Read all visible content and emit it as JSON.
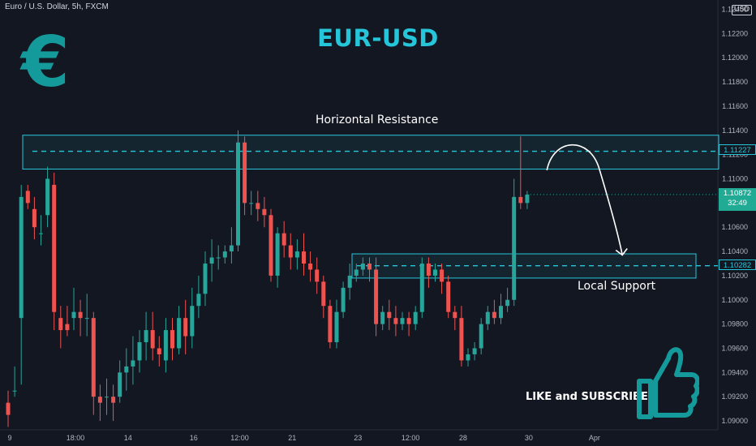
{
  "header": {
    "symbol": "Euro / U.S. Dollar, 5h, FXCM",
    "title": "EUR-USD",
    "currency_unit": "USD"
  },
  "logo": {
    "glyph": "€",
    "icon": "euro-icon"
  },
  "annotations": {
    "resistance_label": "Horizontal Resistance",
    "support_label": "Local Support",
    "cta_label": "LIKE and SUBSCRIBE",
    "cta_icon": "thumbs-up-icon"
  },
  "price_tags": {
    "resistance": "1.11227",
    "support": "1.10282",
    "current_price": "1.10872",
    "countdown": "32:49"
  },
  "colors": {
    "background": "#131722",
    "up": "#26a69a",
    "down": "#ef5350",
    "accent": "#26c6da",
    "logo": "#149a9a"
  },
  "chart_data": {
    "type": "candlestick",
    "ylim": [
      1.089,
      1.1245
    ],
    "y_ticks": [
      "1.09000",
      "1.09200",
      "1.09400",
      "1.09600",
      "1.09800",
      "1.10000",
      "1.10200",
      "1.10400",
      "1.10600",
      "1.10800",
      "1.11000",
      "1.11200",
      "1.11400",
      "1.11600",
      "1.11800",
      "1.12000",
      "1.12200",
      "1.12400"
    ],
    "x_ticks": [
      {
        "label": "9",
        "index": 0
      },
      {
        "label": "18:00",
        "index": 10
      },
      {
        "label": "14",
        "index": 18
      },
      {
        "label": "16",
        "index": 28
      },
      {
        "label": "12:00",
        "index": 35
      },
      {
        "label": "21",
        "index": 43
      },
      {
        "label": "23",
        "index": 53
      },
      {
        "label": "12:00",
        "index": 61
      },
      {
        "label": "28",
        "index": 69
      },
      {
        "label": "30",
        "index": 79
      },
      {
        "label": "Apr",
        "index": 89
      }
    ],
    "resistance_zone": [
      1.1108,
      1.1136
    ],
    "resistance_level": 1.11227,
    "support_zone": [
      1.1018,
      1.1038
    ],
    "support_level": 1.10282,
    "candles": [
      [
        1.0915,
        1.0925,
        1.0905,
        1.0895
      ],
      [
        1.0925,
        1.0945,
        1.0925,
        1.092
      ],
      [
        1.0985,
        1.1095,
        1.1085,
        1.093
      ],
      [
        1.109,
        1.1095,
        1.108,
        1.1075
      ],
      [
        1.1075,
        1.1085,
        1.106,
        1.105
      ],
      [
        1.1055,
        1.107,
        1.1055,
        1.1045
      ],
      [
        1.107,
        1.111,
        1.11,
        1.106
      ],
      [
        1.1095,
        1.1105,
        1.099,
        1.0975
      ],
      [
        1.0985,
        1.0995,
        1.0975,
        1.096
      ],
      [
        1.098,
        1.0995,
        1.0975,
        1.097
      ],
      [
        1.0985,
        1.101,
        1.099,
        1.0975
      ],
      [
        1.099,
        1.1,
        1.0985,
        1.097
      ],
      [
        1.0985,
        1.1005,
        1.0985,
        1.097
      ],
      [
        1.0985,
        1.099,
        1.092,
        1.0905
      ],
      [
        1.092,
        1.093,
        1.0915,
        1.09
      ],
      [
        1.092,
        1.0935,
        1.092,
        1.0905
      ],
      [
        1.092,
        1.093,
        1.0915,
        1.09
      ],
      [
        1.092,
        1.095,
        1.094,
        1.0915
      ],
      [
        1.094,
        1.096,
        1.0945,
        1.0925
      ],
      [
        1.0945,
        1.097,
        1.095,
        1.093
      ],
      [
        1.095,
        1.0975,
        1.0965,
        1.094
      ],
      [
        1.0965,
        1.099,
        1.0975,
        1.095
      ],
      [
        1.0975,
        1.099,
        1.096,
        1.095
      ],
      [
        1.096,
        1.097,
        1.0955,
        1.0945
      ],
      [
        1.095,
        1.0985,
        1.0975,
        1.094
      ],
      [
        1.0975,
        1.0985,
        1.096,
        1.095
      ],
      [
        1.096,
        1.0995,
        1.0985,
        1.0955
      ],
      [
        1.0985,
        1.1,
        1.097,
        1.0955
      ],
      [
        1.097,
        1.101,
        1.0995,
        1.096
      ],
      [
        1.0995,
        1.102,
        1.1005,
        1.0985
      ],
      [
        1.1005,
        1.104,
        1.103,
        1.0995
      ],
      [
        1.103,
        1.105,
        1.1035,
        1.1015
      ],
      [
        1.1035,
        1.1045,
        1.1035,
        1.1025
      ],
      [
        1.1035,
        1.1045,
        1.104,
        1.103
      ],
      [
        1.104,
        1.106,
        1.1045,
        1.103
      ],
      [
        1.1045,
        1.114,
        1.113,
        1.104
      ],
      [
        1.113,
        1.1135,
        1.108,
        1.107
      ],
      [
        1.108,
        1.109,
        1.108,
        1.107
      ],
      [
        1.108,
        1.109,
        1.1075,
        1.1065
      ],
      [
        1.1075,
        1.1085,
        1.107,
        1.106
      ],
      [
        1.107,
        1.1075,
        1.102,
        1.1015
      ],
      [
        1.102,
        1.106,
        1.1055,
        1.101
      ],
      [
        1.1055,
        1.1065,
        1.1045,
        1.1035
      ],
      [
        1.1045,
        1.1055,
        1.1035,
        1.1025
      ],
      [
        1.1035,
        1.105,
        1.104,
        1.1025
      ],
      [
        1.104,
        1.1055,
        1.103,
        1.102
      ],
      [
        1.103,
        1.104,
        1.1025,
        1.1015
      ],
      [
        1.1025,
        1.1035,
        1.1015,
        1.1005
      ],
      [
        1.1015,
        1.102,
        1.0995,
        1.0985
      ],
      [
        1.0995,
        1.1,
        1.0965,
        1.096
      ],
      [
        1.0965,
        1.1,
        1.099,
        1.096
      ],
      [
        1.099,
        1.1015,
        1.101,
        1.0985
      ],
      [
        1.101,
        1.103,
        1.102,
        1.1
      ],
      [
        1.102,
        1.103,
        1.1025,
        1.1015
      ],
      [
        1.1025,
        1.1035,
        1.103,
        1.102
      ],
      [
        1.103,
        1.1035,
        1.1025,
        1.1015
      ],
      [
        1.1025,
        1.1035,
        1.098,
        1.097
      ],
      [
        1.098,
        1.0995,
        1.099,
        1.0975
      ],
      [
        1.099,
        1.1,
        1.0985,
        1.0975
      ],
      [
        1.0985,
        1.0995,
        1.098,
        1.097
      ],
      [
        1.098,
        1.099,
        1.0985,
        1.0975
      ],
      [
        1.0985,
        1.099,
        1.098,
        1.097
      ],
      [
        1.098,
        1.0995,
        1.099,
        1.0975
      ],
      [
        1.099,
        1.1035,
        1.103,
        1.0985
      ],
      [
        1.103,
        1.1035,
        1.102,
        1.101
      ],
      [
        1.102,
        1.103,
        1.1025,
        1.1015
      ],
      [
        1.1025,
        1.103,
        1.1015,
        1.1005
      ],
      [
        1.1015,
        1.102,
        1.099,
        1.0985
      ],
      [
        1.099,
        1.0995,
        1.0985,
        1.0975
      ],
      [
        1.0985,
        1.0995,
        1.095,
        1.0945
      ],
      [
        1.095,
        1.096,
        1.0955,
        1.0945
      ],
      [
        1.0955,
        1.0965,
        1.096,
        1.095
      ],
      [
        1.096,
        1.0985,
        1.098,
        1.0955
      ],
      [
        1.098,
        1.0995,
        1.099,
        1.0975
      ],
      [
        1.099,
        1.1,
        1.0985,
        1.098
      ],
      [
        1.0985,
        1.1005,
        1.0995,
        1.098
      ],
      [
        1.0995,
        1.101,
        1.1,
        1.099
      ],
      [
        1.1,
        1.11,
        1.1085,
        1.0995
      ],
      [
        1.1085,
        1.1135,
        1.108,
        1.1075
      ],
      [
        1.108,
        1.109,
        1.1087,
        1.1075
      ]
    ],
    "forecast": {
      "from_index": 82,
      "from_price": 1.1107,
      "peak_index": 86,
      "peak_price": 1.1122,
      "to_index": 92,
      "to_price": 1.1037
    }
  }
}
